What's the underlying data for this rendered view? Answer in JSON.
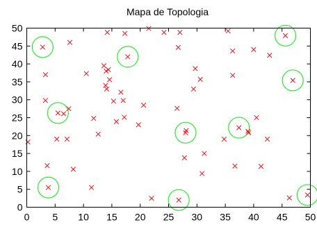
{
  "chart_data": {
    "type": "scatter",
    "title": "Mapa de Topologia",
    "xlabel": "",
    "ylabel": "",
    "xlim": [
      0,
      50
    ],
    "ylim": [
      0,
      50
    ],
    "xticks": [
      "0",
      "5",
      "10",
      "15",
      "20",
      "25",
      "30",
      "35",
      "40",
      "45",
      "50"
    ],
    "yticks": [
      "0",
      "5",
      "10",
      "15",
      "20",
      "25",
      "30",
      "35",
      "40",
      "45",
      "50"
    ],
    "grid": false,
    "legend": "none",
    "marker_color": "#e8161b",
    "circle_color": "#2ee82e",
    "points": [
      [
        2.8,
        44.7
      ],
      [
        3.3,
        37.0
      ],
      [
        3.3,
        29.8
      ],
      [
        3.6,
        11.6
      ],
      [
        3.8,
        5.5
      ],
      [
        0.2,
        18.2
      ],
      [
        5.3,
        19.0
      ],
      [
        5.5,
        26.3
      ],
      [
        6.5,
        26.1
      ],
      [
        7.1,
        19.0
      ],
      [
        7.4,
        27.5
      ],
      [
        7.6,
        46.0
      ],
      [
        8.2,
        10.6
      ],
      [
        10.5,
        37.3
      ],
      [
        11.4,
        5.5
      ],
      [
        11.8,
        24.8
      ],
      [
        12.6,
        20.4
      ],
      [
        13.6,
        39.5
      ],
      [
        13.9,
        34.0
      ],
      [
        14.0,
        38.0
      ],
      [
        14.1,
        33.0
      ],
      [
        14.2,
        48.8
      ],
      [
        14.4,
        38.4
      ],
      [
        14.6,
        35.6
      ],
      [
        15.3,
        29.6
      ],
      [
        15.8,
        23.9
      ],
      [
        16.6,
        32.1
      ],
      [
        17.0,
        29.8
      ],
      [
        17.2,
        25.1
      ],
      [
        17.3,
        48.5
      ],
      [
        17.8,
        42.0
      ],
      [
        19.7,
        23.0
      ],
      [
        20.6,
        28.5
      ],
      [
        21.5,
        49.9
      ],
      [
        22.0,
        2.5
      ],
      [
        24.2,
        48.8
      ],
      [
        26.5,
        27.6
      ],
      [
        26.7,
        44.6
      ],
      [
        26.8,
        2.0
      ],
      [
        27.0,
        48.8
      ],
      [
        28.0,
        20.8
      ],
      [
        28.1,
        21.4
      ],
      [
        27.8,
        13.8
      ],
      [
        29.4,
        33.0
      ],
      [
        29.7,
        38.7
      ],
      [
        30.6,
        35.7
      ],
      [
        30.9,
        9.4
      ],
      [
        31.3,
        15.0
      ],
      [
        34.8,
        19.0
      ],
      [
        35.5,
        49.2
      ],
      [
        36.3,
        43.6
      ],
      [
        36.3,
        36.8
      ],
      [
        36.7,
        11.5
      ],
      [
        37.4,
        22.2
      ],
      [
        39.0,
        21.2
      ],
      [
        39.1,
        20.8
      ],
      [
        40.0,
        44.0
      ],
      [
        40.5,
        25.0
      ],
      [
        41.3,
        11.4
      ],
      [
        42.4,
        19.0
      ],
      [
        42.8,
        42.4
      ],
      [
        45.6,
        47.9
      ],
      [
        46.3,
        2.6
      ],
      [
        46.9,
        35.4
      ],
      [
        49.5,
        3.4
      ]
    ],
    "highlighted": [
      [
        2.8,
        44.7
      ],
      [
        5.5,
        26.3
      ],
      [
        3.8,
        5.5
      ],
      [
        17.8,
        42.0
      ],
      [
        26.8,
        2.0
      ],
      [
        28.0,
        20.8
      ],
      [
        37.4,
        22.2
      ],
      [
        45.6,
        47.9
      ],
      [
        46.9,
        35.4
      ],
      [
        49.5,
        3.4
      ]
    ]
  }
}
